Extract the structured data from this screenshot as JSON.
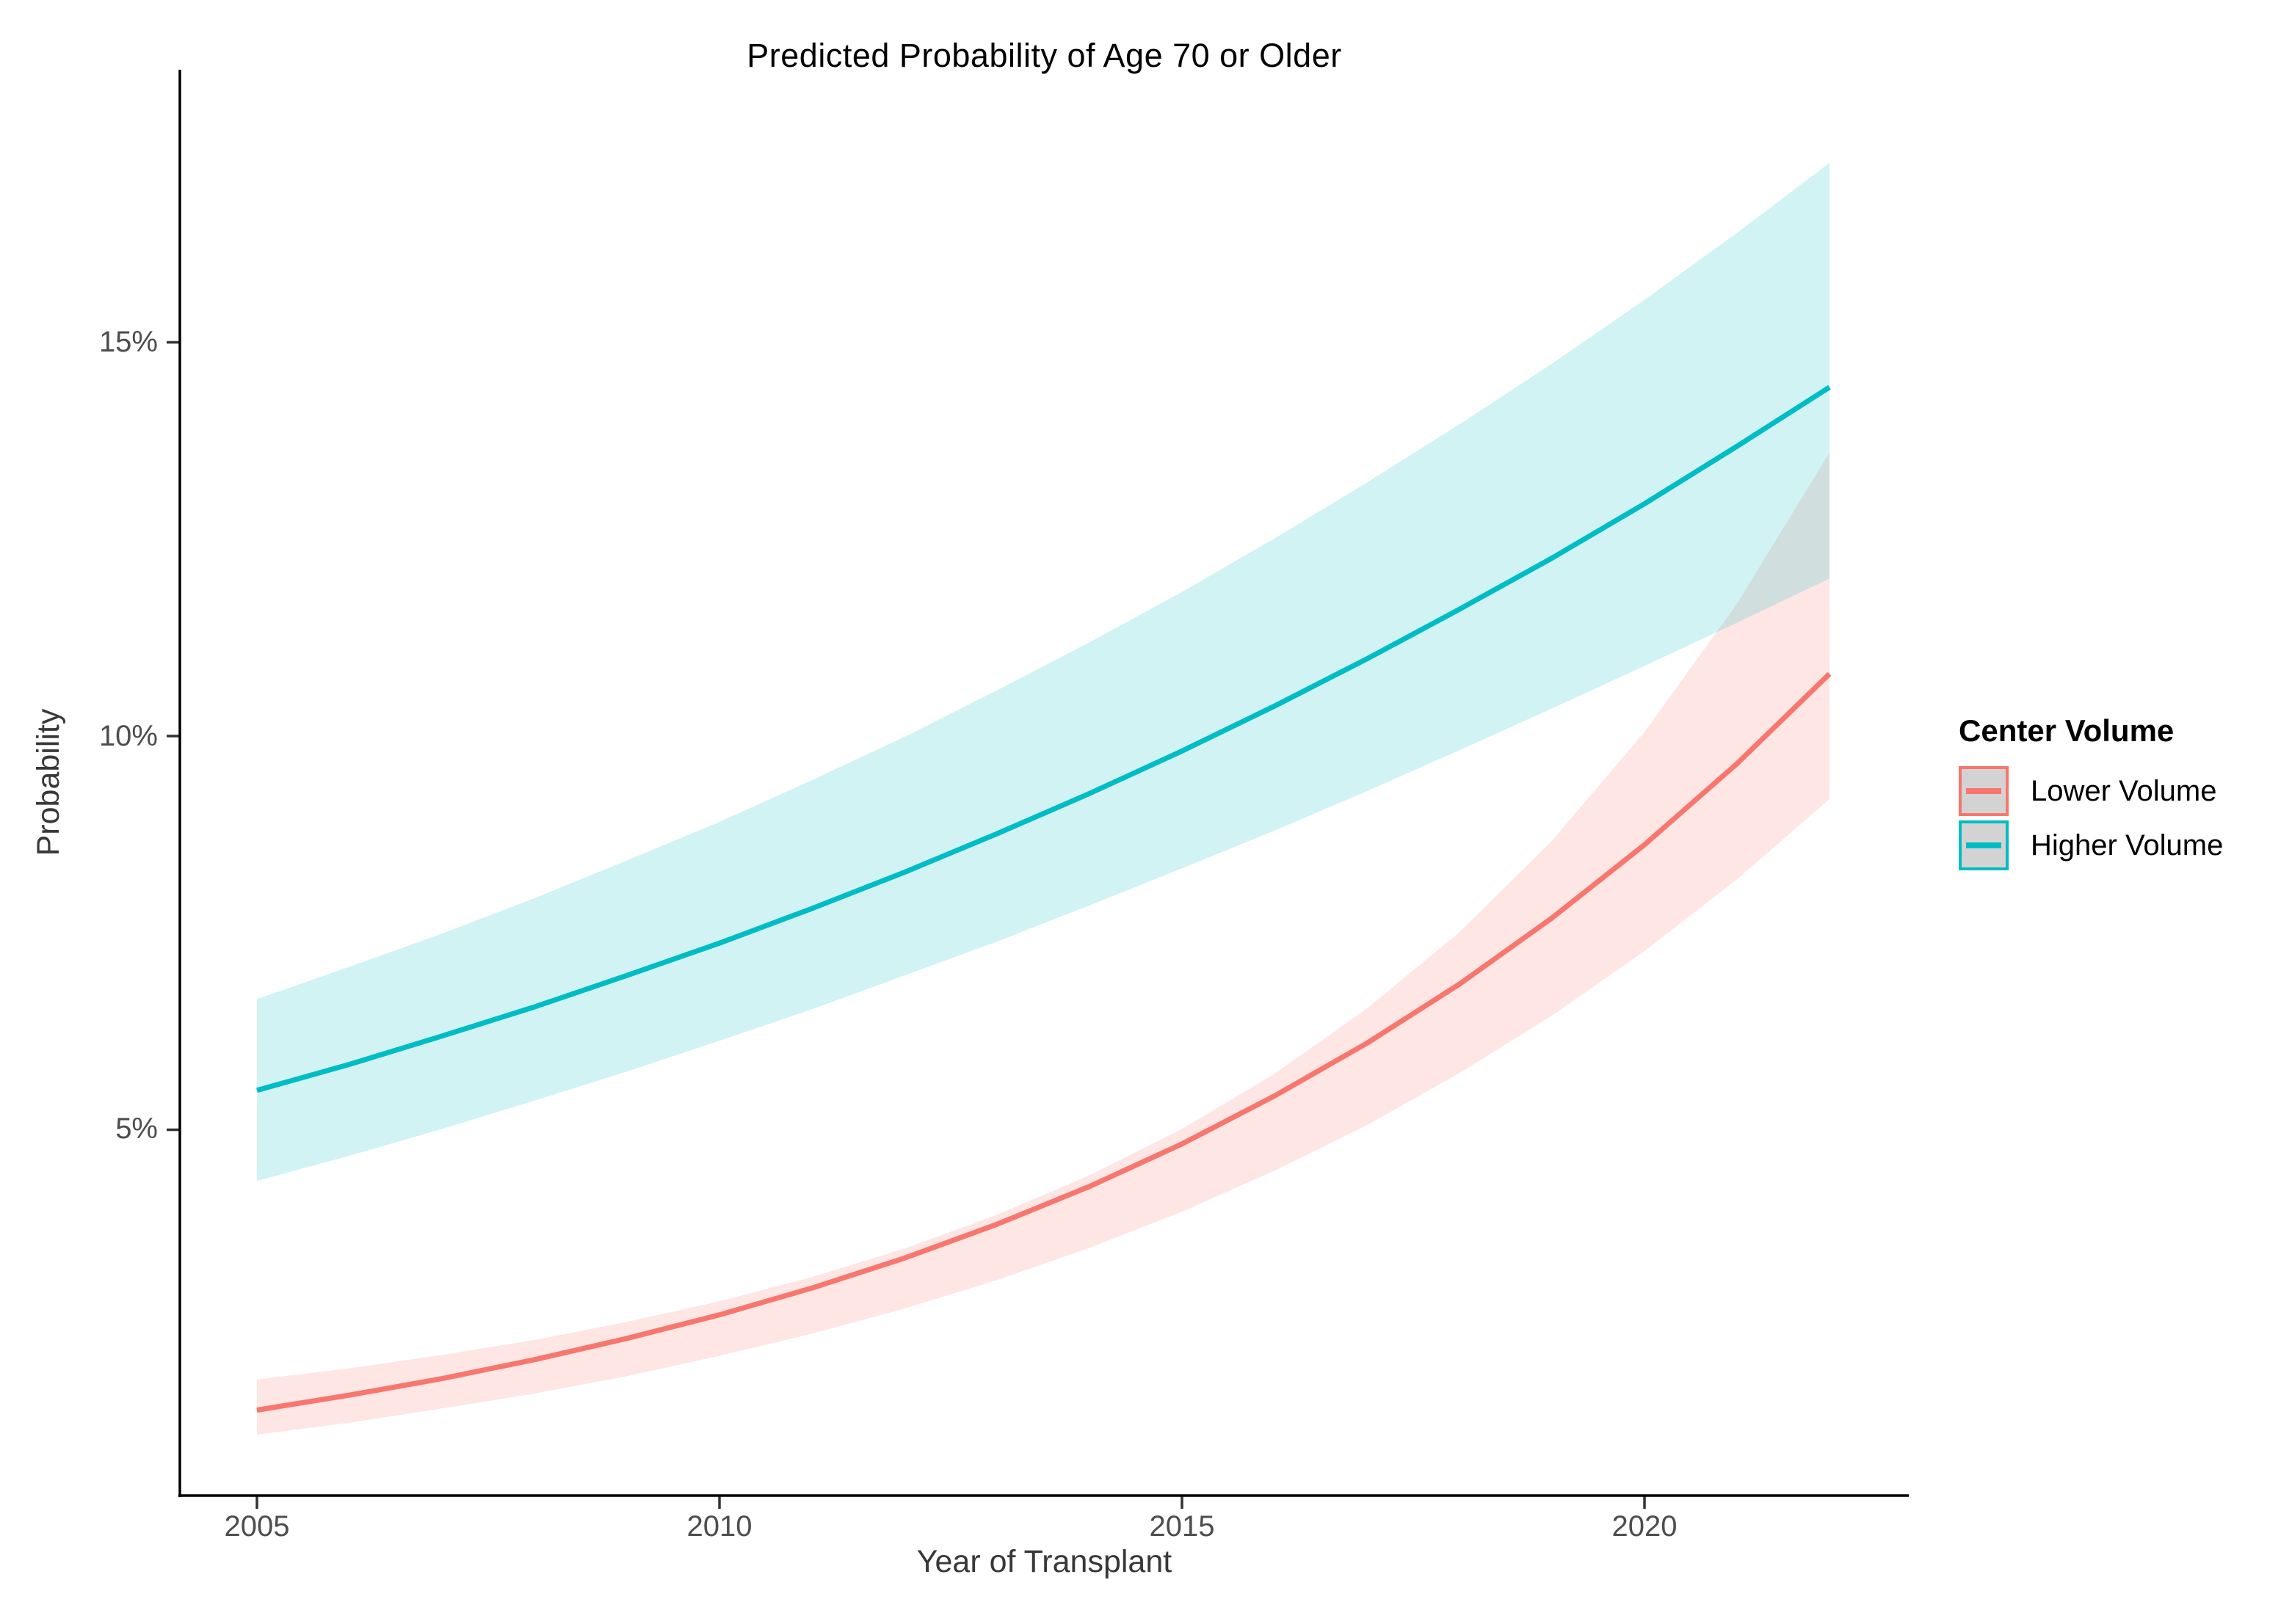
{
  "chart": {
    "title": "Predicted Probability of Age 70 or Older",
    "x_label": "Year of Transplant",
    "y_label": "Probability"
  },
  "axes": {
    "x": {
      "ticks": [
        {
          "value": 2005,
          "label": "2005"
        },
        {
          "value": 2010,
          "label": "2010"
        },
        {
          "value": 2015,
          "label": "2015"
        },
        {
          "value": 2020,
          "label": "2020"
        }
      ]
    },
    "y": {
      "ticks": [
        {
          "value": 15,
          "label": "15%"
        },
        {
          "value": 10,
          "label": "10%"
        },
        {
          "value": 5,
          "label": "5%"
        }
      ]
    }
  },
  "legend": {
    "title": "Center Volume",
    "items": [
      {
        "label": "Lower Volume",
        "color": "#F8766D"
      },
      {
        "label": "Higher Volume",
        "color": "#00BCC4"
      }
    ]
  },
  "colors": {
    "lower_volume_line": "#F8766D",
    "higher_volume_line": "#00BCC4",
    "ribbon_opacity": 0.18,
    "legend_key_fill": "#D3D3D3",
    "axis_line": "#000000",
    "tick_mark": "#333333",
    "axis_text": "#4D4D4D",
    "background": "#FFFFFF"
  },
  "chart_data": {
    "type": "line",
    "title": "Predicted Probability of Age 70 or Older",
    "xlabel": "Year of Transplant",
    "ylabel": "Probability",
    "y_unit": "percent",
    "xlim": [
      2004.2,
      2022.9
    ],
    "ylim": [
      0.35,
      18.45
    ],
    "grid": false,
    "legend_position": "right",
    "ribbons": true,
    "x": [
      2005,
      2006,
      2007,
      2008,
      2009,
      2010,
      2011,
      2012,
      2013,
      2014,
      2015,
      2016,
      2017,
      2018,
      2019,
      2020,
      2021,
      2022
    ],
    "series": [
      {
        "name": "Lower Volume",
        "color": "#F8766D",
        "values": [
          1.44,
          1.63,
          1.84,
          2.08,
          2.35,
          2.65,
          2.99,
          3.37,
          3.8,
          4.28,
          4.82,
          5.43,
          6.1,
          6.85,
          7.69,
          8.62,
          9.65,
          10.79
        ],
        "ci_upper": [
          1.83,
          1.97,
          2.14,
          2.33,
          2.56,
          2.82,
          3.13,
          3.49,
          3.92,
          4.42,
          5.01,
          5.71,
          6.54,
          7.51,
          8.67,
          10.05,
          11.68,
          13.6
        ],
        "ci_lower": [
          1.13,
          1.28,
          1.46,
          1.65,
          1.87,
          2.13,
          2.41,
          2.73,
          3.09,
          3.5,
          3.96,
          4.48,
          5.06,
          5.72,
          6.45,
          7.27,
          8.18,
          9.2
        ]
      },
      {
        "name": "Higher Volume",
        "color": "#00BCC4",
        "values": [
          5.5,
          5.83,
          6.19,
          6.56,
          6.96,
          7.37,
          7.81,
          8.27,
          8.76,
          9.27,
          9.81,
          10.38,
          10.98,
          11.61,
          12.26,
          12.95,
          13.68,
          14.43
        ],
        "ci_upper": [
          6.66,
          7.07,
          7.49,
          7.94,
          8.42,
          8.91,
          9.44,
          9.99,
          10.58,
          11.19,
          11.83,
          12.51,
          13.22,
          13.96,
          14.73,
          15.54,
          16.39,
          17.28
        ],
        "ci_lower": [
          4.35,
          4.67,
          5.01,
          5.37,
          5.74,
          6.13,
          6.53,
          6.96,
          7.39,
          7.85,
          8.32,
          8.8,
          9.3,
          9.82,
          10.35,
          10.89,
          11.44,
          12.0
        ]
      }
    ]
  }
}
